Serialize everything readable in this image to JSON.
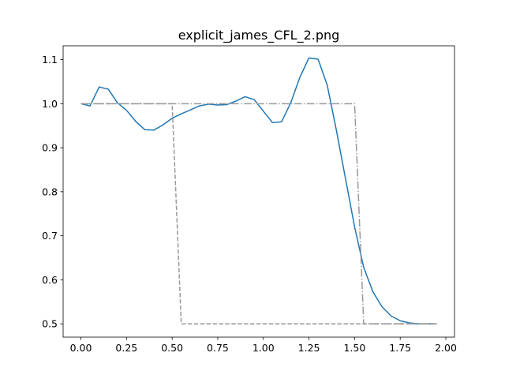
{
  "chart_data": {
    "type": "line",
    "title": "explicit_james_CFL_2.png",
    "xlabel": "",
    "ylabel": "",
    "xlim": [
      -0.0975,
      2.0475
    ],
    "ylim": [
      0.4698,
      1.1315
    ],
    "xticks": [
      0.0,
      0.25,
      0.5,
      0.75,
      1.0,
      1.25,
      1.5,
      1.75,
      2.0
    ],
    "xtick_labels": [
      "0.00",
      "0.25",
      "0.50",
      "0.75",
      "1.00",
      "1.25",
      "1.50",
      "1.75",
      "2.00"
    ],
    "yticks": [
      0.5,
      0.6,
      0.7,
      0.8,
      0.9,
      1.0,
      1.1
    ],
    "ytick_labels": [
      "0.5",
      "0.6",
      "0.7",
      "0.8",
      "0.9",
      "1.0",
      "1.1"
    ],
    "grid": false,
    "series": [
      {
        "color": "#1f77b4",
        "style": "solid",
        "x": [
          0.0,
          0.05,
          0.1,
          0.15,
          0.2,
          0.25,
          0.3,
          0.35,
          0.4,
          0.45,
          0.5,
          0.55,
          0.6,
          0.65,
          0.7,
          0.75,
          0.8,
          0.85,
          0.9,
          0.95,
          1.0,
          1.05,
          1.1,
          1.15,
          1.2,
          1.25,
          1.3,
          1.35,
          1.4,
          1.45,
          1.5,
          1.55,
          1.6,
          1.65,
          1.7,
          1.75,
          1.8,
          1.85,
          1.9,
          1.95
        ],
        "y": [
          1.0,
          0.995,
          1.038,
          1.033,
          1.002,
          0.985,
          0.96,
          0.941,
          0.94,
          0.952,
          0.967,
          0.977,
          0.986,
          0.995,
          0.999,
          0.997,
          0.998,
          1.006,
          1.016,
          1.009,
          0.983,
          0.957,
          0.959,
          1.002,
          1.06,
          1.104,
          1.101,
          1.042,
          0.94,
          0.83,
          0.72,
          0.628,
          0.573,
          0.539,
          0.518,
          0.507,
          0.502,
          0.5,
          0.5,
          0.5
        ]
      },
      {
        "color": "#999999",
        "style": "dashed",
        "x": [
          0.0,
          0.5,
          0.55,
          1.95
        ],
        "y": [
          1.0,
          1.0,
          0.5,
          0.5
        ]
      },
      {
        "color": "#999999",
        "style": "dashdot",
        "x": [
          0.0,
          1.5,
          1.55,
          1.95
        ],
        "y": [
          1.0,
          1.0,
          0.5,
          0.5
        ]
      }
    ]
  }
}
